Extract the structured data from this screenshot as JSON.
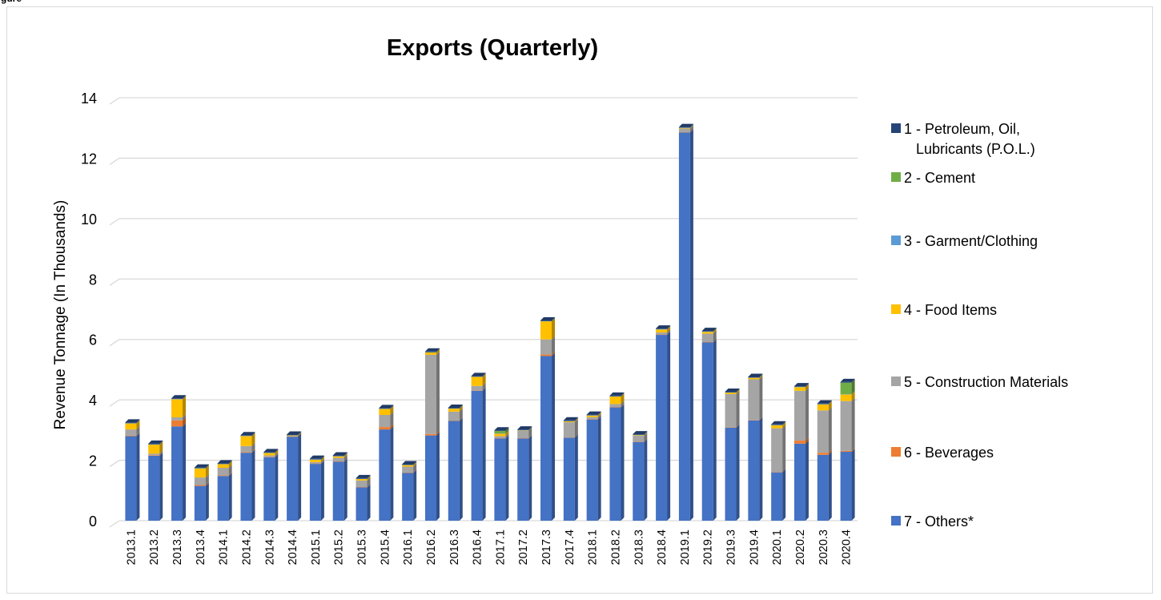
{
  "page": {
    "corner_label": "gure"
  },
  "chart_data": {
    "type": "bar",
    "stacked": true,
    "title": "Exports (Quarterly)",
    "xlabel": "",
    "ylabel": "Revenue Tonnage (In Thousands)",
    "ylim": [
      0,
      14
    ],
    "yticks": [
      "0",
      "2",
      "4",
      "6",
      "8",
      "10",
      "12",
      "14"
    ],
    "grid": true,
    "legend_position": "right",
    "categories": [
      "2013.1",
      "2013.2",
      "2013.3",
      "2013.4",
      "2014.1",
      "2014.2",
      "2014.3",
      "2014.4",
      "2015.1",
      "2015.2",
      "2015.3",
      "2015.4",
      "2016.1",
      "2016.2",
      "2016.3",
      "2016.4",
      "2017.1",
      "2017.2",
      "2017.3",
      "2017.4",
      "2018.1",
      "2018.2",
      "2018.3",
      "2018.4",
      "2019.1",
      "2019.2",
      "2019.3",
      "2019.4",
      "2020.1",
      "2020.2",
      "2020.3",
      "2020.4"
    ],
    "series": [
      {
        "name": "7 - Others*",
        "color": "#4472c4",
        "values": [
          2.8,
          2.15,
          3.12,
          1.15,
          1.48,
          2.25,
          2.1,
          2.78,
          1.88,
          1.95,
          1.1,
          3.02,
          1.58,
          2.82,
          3.3,
          4.3,
          2.72,
          2.72,
          5.45,
          2.75,
          3.35,
          3.75,
          2.6,
          6.15,
          12.85,
          5.9,
          3.08,
          3.32,
          1.6,
          2.55,
          2.18,
          2.28
        ]
      },
      {
        "name": "6 - Beverages",
        "color": "#ed7d31",
        "values": [
          0.02,
          0.02,
          0.2,
          0.03,
          0.02,
          0.02,
          0.01,
          0.01,
          0.01,
          0.01,
          0.01,
          0.08,
          0.01,
          0.05,
          0.01,
          0.01,
          0.01,
          0.01,
          0.05,
          0.01,
          0.01,
          0.01,
          0.01,
          0.01,
          0.01,
          0.01,
          0.01,
          0.01,
          0.01,
          0.1,
          0.07,
          0.03
        ]
      },
      {
        "name": "5 - Construction Materials",
        "color": "#a5a5a5",
        "values": [
          0.2,
          0.05,
          0.1,
          0.25,
          0.25,
          0.2,
          0.05,
          0.01,
          0.05,
          0.12,
          0.22,
          0.4,
          0.2,
          2.62,
          0.3,
          0.15,
          0.07,
          0.25,
          0.5,
          0.5,
          0.07,
          0.1,
          0.2,
          0.07,
          0.12,
          0.28,
          1.1,
          1.35,
          1.45,
          1.65,
          1.4,
          1.65
        ]
      },
      {
        "name": "4 - Food Items",
        "color": "#ffc000",
        "values": [
          0.2,
          0.3,
          0.6,
          0.3,
          0.12,
          0.33,
          0.08,
          0.02,
          0.08,
          0.05,
          0.05,
          0.2,
          0.05,
          0.08,
          0.1,
          0.3,
          0.08,
          0.01,
          0.6,
          0.03,
          0.05,
          0.25,
          0.02,
          0.1,
          0.02,
          0.06,
          0.05,
          0.05,
          0.1,
          0.12,
          0.2,
          0.22
        ]
      },
      {
        "name": "3 - Garment/Clothing",
        "color": "#5b9bd5",
        "values": [
          0.01,
          0.01,
          0.01,
          0.01,
          0.01,
          0.01,
          0.01,
          0.01,
          0.01,
          0.01,
          0.01,
          0.01,
          0.01,
          0.01,
          0.01,
          0.01,
          0.01,
          0.01,
          0.01,
          0.01,
          0.01,
          0.01,
          0.01,
          0.01,
          0.01,
          0.01,
          0.01,
          0.01,
          0.01,
          0.01,
          0.01,
          0.01
        ]
      },
      {
        "name": "2 - Cement",
        "color": "#70ad47",
        "values": [
          0,
          0,
          0,
          0,
          0,
          0,
          0,
          0,
          0,
          0,
          0,
          0,
          0,
          0,
          0,
          0,
          0.08,
          0,
          0,
          0,
          0,
          0,
          0,
          0,
          0,
          0,
          0,
          0,
          0,
          0,
          0,
          0.38
        ]
      },
      {
        "name": "1 - Petroleum, Oil, Lubricants (P.O.L.)",
        "color": "#264478",
        "values": [
          0.02,
          0.02,
          0.02,
          0.02,
          0.02,
          0.02,
          0.02,
          0.02,
          0.02,
          0.02,
          0.02,
          0.02,
          0.02,
          0.02,
          0.02,
          0.02,
          0.02,
          0.02,
          0.02,
          0.02,
          0.02,
          0.02,
          0.02,
          0.02,
          0.02,
          0.02,
          0.02,
          0.02,
          0.02,
          0.02,
          0.02,
          0.02
        ]
      }
    ],
    "legend": [
      {
        "lines": [
          "1 - Petroleum, Oil,",
          "Lubricants (P.O.L.)"
        ],
        "color": "#264478"
      },
      {
        "lines": [
          "2 - Cement"
        ],
        "color": "#70ad47"
      },
      {
        "lines": [
          "3 - Garment/Clothing"
        ],
        "color": "#5b9bd5"
      },
      {
        "lines": [
          "4 - Food Items"
        ],
        "color": "#ffc000"
      },
      {
        "lines": [
          "5 - Construction Materials"
        ],
        "color": "#a5a5a5"
      },
      {
        "lines": [
          "6 - Beverages"
        ],
        "color": "#ed7d31"
      },
      {
        "lines": [
          "7 - Others*"
        ],
        "color": "#4472c4"
      }
    ]
  }
}
